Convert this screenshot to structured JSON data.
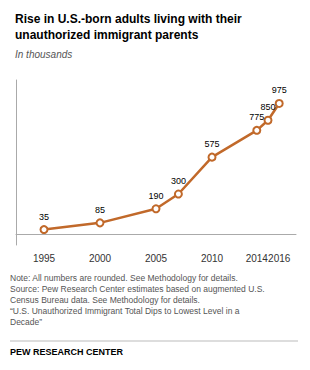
{
  "chart_data": {
    "type": "line",
    "title": "Rise in U.S.-born adults living with their\nunauthorized immigrant parents",
    "subtitle": "In thousands",
    "annotations": [
      "Note: All numbers are rounded. See Methodology for details.\nSource: Pew Research Center estimates based on augmented U.S.\nCensus Bureau data. See Methodology for details.\n“U.S. Unauthorized Immigrant Total Dips to Lowest Level in a\nDecade”",
      "PEW RESEARCH CENTER"
    ],
    "x": [
      1995,
      2000,
      2005,
      2007,
      2010,
      2014,
      2015,
      2016
    ],
    "values": [
      35,
      85,
      190,
      300,
      575,
      775,
      850,
      975
    ],
    "color": "#C1692A",
    "marker": "circle",
    "xlim": [
      1992.5,
      2017.5
    ],
    "xticks": [
      1995,
      2000,
      2005,
      2010,
      2014,
      2016
    ],
    "ylim": [
      -80,
      1150
    ],
    "grid": false,
    "data_labels": true,
    "tick_labels": "x"
  }
}
